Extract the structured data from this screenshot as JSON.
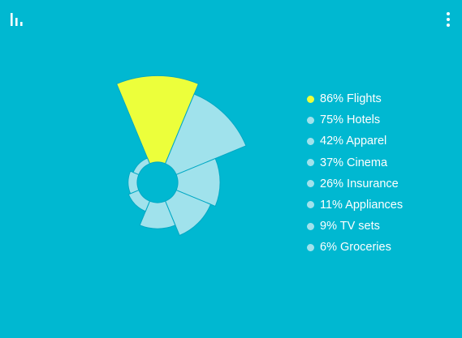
{
  "theme": {
    "background": "#00b8d1",
    "highlight": "#ecff3b",
    "slice_fill": "#a0e2ec",
    "slice_stroke": "#00a8c4",
    "icon_color": "#ffffff"
  },
  "icons": {
    "chart": "bar-chart-icon",
    "menu": "more-vertical-icon"
  },
  "chart_data": {
    "type": "polar-area",
    "title": "",
    "unit": "%",
    "highlighted": "Flights",
    "categories": [
      "Flights",
      "Hotels",
      "Apparel",
      "Cinema",
      "Insurance",
      "Appliances",
      "TV sets",
      "Groceries"
    ],
    "values": [
      86,
      75,
      42,
      37,
      26,
      11,
      9,
      6
    ],
    "labels": [
      "86% Flights",
      "75% Hotels",
      "42% Apparel",
      "37% Cinema",
      "26% Insurance",
      "11% Appliances",
      "9% TV sets",
      "6% Groceries"
    ]
  }
}
